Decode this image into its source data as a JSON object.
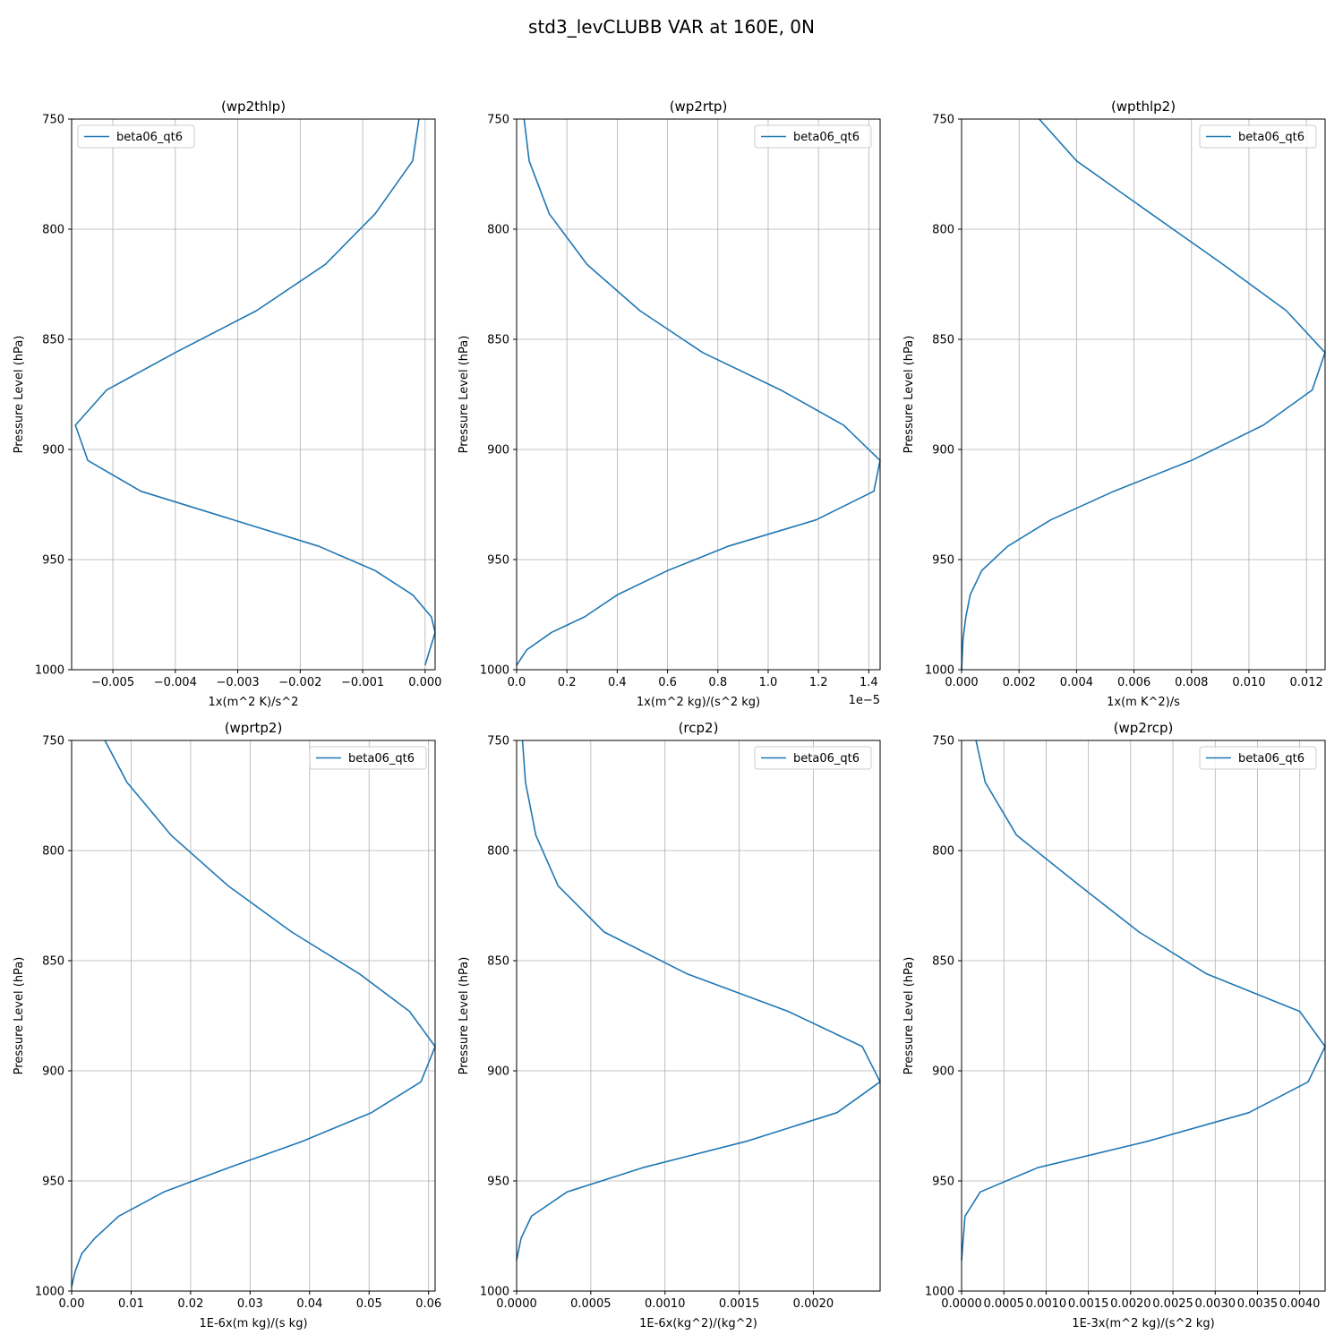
{
  "figure": {
    "title": "std3_levCLUBB VAR at 160E, 0N",
    "series_color": "#1f77b4",
    "grid": true,
    "legend_frame_color": "#cccccc"
  },
  "chart_data": [
    {
      "type": "line",
      "title": "(wp2thlp)",
      "xlabel": "1x(m^2 K)/s^2",
      "ylabel": "Pressure Level (hPa)",
      "xlim": [
        -0.00566,
        0.00016
      ],
      "ylim": [
        1000,
        750
      ],
      "xticks": [
        -0.005,
        -0.004,
        -0.003,
        -0.002,
        -0.001,
        0.0
      ],
      "xtick_labels": [
        "−0.005",
        "−0.004",
        "−0.003",
        "−0.002",
        "−0.001",
        "0.000"
      ],
      "yticks": [
        750,
        800,
        850,
        900,
        950,
        1000
      ],
      "ytick_labels": [
        "750",
        "800",
        "850",
        "900",
        "950",
        "1000"
      ],
      "legend": {
        "position": "upper left",
        "entries": [
          "beta06_qt6"
        ]
      },
      "series": [
        {
          "name": "beta06_qt6",
          "x": [
            -0.0001,
            -0.0002,
            -0.0008,
            -0.0016,
            -0.0027,
            -0.004,
            -0.0051,
            -0.0056,
            -0.0054,
            -0.00455,
            -0.0017,
            -0.0008,
            -0.0002,
            0.0001,
            0.00016,
            0.0
          ],
          "y": [
            750,
            769,
            793,
            816,
            837,
            856,
            873,
            889,
            905,
            919,
            944,
            955,
            966,
            976,
            983,
            998
          ]
        }
      ]
    },
    {
      "type": "line",
      "title": "(wp2rtp)",
      "xlabel": "1x(m^2 kg)/(s^2 kg)",
      "ylabel": "Pressure Level (hPa)",
      "offset_text": "1e−5",
      "xlim": [
        0.0,
        1.445
      ],
      "ylim": [
        1000,
        750
      ],
      "xticks": [
        0.0,
        0.2,
        0.4,
        0.6,
        0.8,
        1.0,
        1.2,
        1.4
      ],
      "xtick_labels": [
        "0.0",
        "0.2",
        "0.4",
        "0.6",
        "0.8",
        "1.0",
        "1.2",
        "1.4"
      ],
      "yticks": [
        750,
        800,
        850,
        900,
        950,
        1000
      ],
      "ytick_labels": [
        "750",
        "800",
        "850",
        "900",
        "950",
        "1000"
      ],
      "legend": {
        "position": "upper right",
        "entries": [
          "beta06_qt6"
        ]
      },
      "series": [
        {
          "name": "beta06_qt6",
          "x": [
            0.03,
            0.05,
            0.13,
            0.28,
            0.49,
            0.74,
            1.05,
            1.3,
            1.445,
            1.42,
            1.19,
            0.84,
            0.6,
            0.4,
            0.27,
            0.14,
            0.04,
            0.0
          ],
          "y": [
            750,
            769,
            793,
            816,
            837,
            856,
            873,
            889,
            905,
            919,
            932,
            944,
            955,
            966,
            976,
            983,
            991,
            998
          ]
        }
      ]
    },
    {
      "type": "line",
      "title": "(wpthlp2)",
      "xlabel": "1x(m K^2)/s",
      "ylabel": "Pressure Level (hPa)",
      "xlim": [
        0.0,
        0.01265
      ],
      "ylim": [
        1000,
        750
      ],
      "xticks": [
        0.0,
        0.002,
        0.004,
        0.006,
        0.008,
        0.01,
        0.012
      ],
      "xtick_labels": [
        "0.000",
        "0.002",
        "0.004",
        "0.006",
        "0.008",
        "0.010",
        "0.012"
      ],
      "yticks": [
        750,
        800,
        850,
        900,
        950,
        1000
      ],
      "ytick_labels": [
        "750",
        "800",
        "850",
        "900",
        "950",
        "1000"
      ],
      "legend": {
        "position": "upper right",
        "entries": [
          "beta06_qt6"
        ]
      },
      "series": [
        {
          "name": "beta06_qt6",
          "x": [
            0.0027,
            0.004,
            0.0066,
            0.0091,
            0.0113,
            0.01265,
            0.0122,
            0.0105,
            0.008,
            0.0053,
            0.0031,
            0.0016,
            0.0007,
            0.0003,
            0.00015,
            5e-05,
            0.0
          ],
          "y": [
            750,
            769,
            793,
            816,
            837,
            856,
            873,
            889,
            905,
            919,
            932,
            944,
            955,
            966,
            976,
            986,
            1000
          ]
        }
      ]
    },
    {
      "type": "line",
      "title": "(wprtp2)",
      "xlabel": "1E-6x(m kg)/(s kg)",
      "ylabel": "Pressure Level (hPa)",
      "xlim": [
        0.0,
        0.0611
      ],
      "ylim": [
        1000,
        750
      ],
      "xticks": [
        0.0,
        0.01,
        0.02,
        0.03,
        0.04,
        0.05,
        0.06
      ],
      "xtick_labels": [
        "0.00",
        "0.01",
        "0.02",
        "0.03",
        "0.04",
        "0.05",
        "0.06"
      ],
      "yticks": [
        750,
        800,
        850,
        900,
        950,
        1000
      ],
      "ytick_labels": [
        "750",
        "800",
        "850",
        "900",
        "950",
        "1000"
      ],
      "legend": {
        "position": "upper right",
        "entries": [
          "beta06_qt6"
        ]
      },
      "series": [
        {
          "name": "beta06_qt6",
          "x": [
            0.0056,
            0.0093,
            0.0167,
            0.0263,
            0.037,
            0.0484,
            0.0568,
            0.0611,
            0.0587,
            0.0504,
            0.0388,
            0.0264,
            0.0155,
            0.0079,
            0.0039,
            0.0017,
            0.0006,
            0.0
          ],
          "y": [
            750,
            769,
            793,
            816,
            837,
            856,
            873,
            889,
            905,
            919,
            932,
            944,
            955,
            966,
            976,
            983,
            991,
            998
          ]
        }
      ]
    },
    {
      "type": "line",
      "title": "(rcp2)",
      "xlabel": "1E-6x(kg^2)/(kg^2)",
      "ylabel": "Pressure Level (hPa)",
      "xlim": [
        0.0,
        0.00245
      ],
      "ylim": [
        1000,
        750
      ],
      "xticks": [
        0.0,
        0.0005,
        0.001,
        0.0015,
        0.002
      ],
      "xtick_labels": [
        "0.0000",
        "0.0005",
        "0.0010",
        "0.0015",
        "0.0020"
      ],
      "yticks": [
        750,
        800,
        850,
        900,
        950,
        1000
      ],
      "ytick_labels": [
        "750",
        "800",
        "850",
        "900",
        "950",
        "1000"
      ],
      "legend": {
        "position": "upper right",
        "entries": [
          "beta06_qt6"
        ]
      },
      "series": [
        {
          "name": "beta06_qt6",
          "x": [
            4e-05,
            6e-05,
            0.00013,
            0.00028,
            0.00059,
            0.00115,
            0.00183,
            0.00233,
            0.00245,
            0.00216,
            0.00155,
            0.00085,
            0.00034,
            0.0001,
            3e-05,
            0.0
          ],
          "y": [
            750,
            769,
            793,
            816,
            837,
            856,
            873,
            889,
            905,
            919,
            932,
            944,
            955,
            966,
            976,
            986
          ]
        }
      ]
    },
    {
      "type": "line",
      "title": "(wp2rcp)",
      "xlabel": "1E-3x(m^2 kg)/(s^2 kg)",
      "ylabel": "Pressure Level (hPa)",
      "xlim": [
        0.0,
        0.0043
      ],
      "ylim": [
        1000,
        750
      ],
      "xticks": [
        0.0,
        0.0005,
        0.001,
        0.0015,
        0.002,
        0.0025,
        0.003,
        0.0035,
        0.004
      ],
      "xtick_labels": [
        "0.0000",
        "0.0005",
        "0.0010",
        "0.0015",
        "0.0020",
        "0.0025",
        "0.0030",
        "0.0035",
        "0.0040"
      ],
      "yticks": [
        750,
        800,
        850,
        900,
        950,
        1000
      ],
      "ytick_labels": [
        "750",
        "800",
        "850",
        "900",
        "950",
        "1000"
      ],
      "legend": {
        "position": "upper right",
        "entries": [
          "beta06_qt6"
        ]
      },
      "series": [
        {
          "name": "beta06_qt6",
          "x": [
            0.00017,
            0.00028,
            0.00065,
            0.0014,
            0.0021,
            0.0029,
            0.004,
            0.0043,
            0.0041,
            0.0034,
            0.0022,
            0.0009,
            0.00022,
            4e-05,
            0.0
          ],
          "y": [
            750,
            769,
            793,
            816,
            837,
            856,
            873,
            889,
            905,
            919,
            932,
            944,
            955,
            966,
            986
          ]
        }
      ]
    }
  ]
}
